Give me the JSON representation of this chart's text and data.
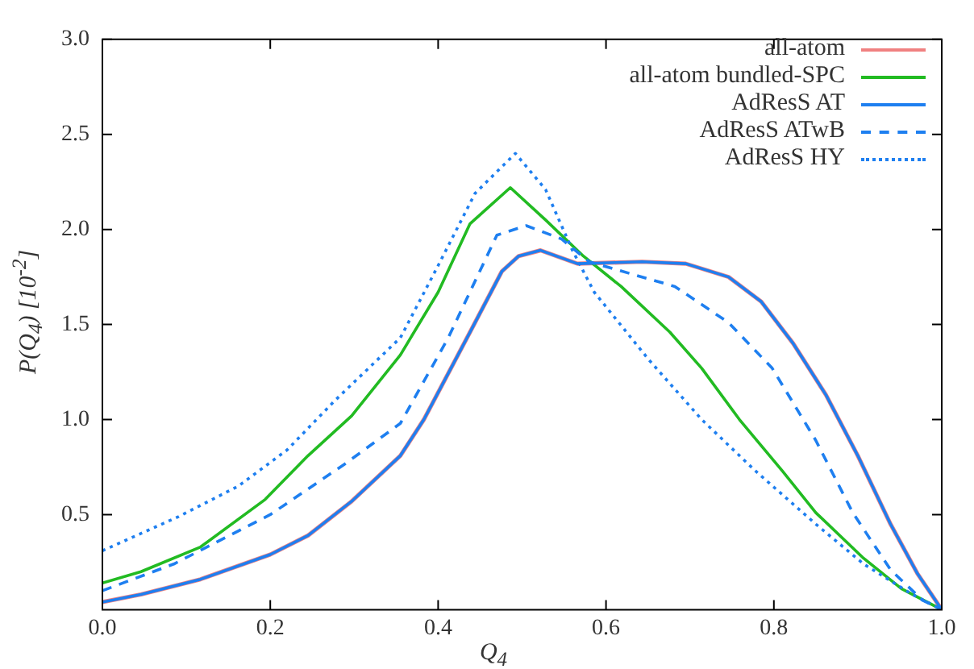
{
  "chart_data": {
    "type": "line",
    "xlabel": "Q$_{4}$",
    "ylabel": "P(Q$_{4}$) [10$^{-2}$]",
    "xlim": [
      0,
      1
    ],
    "ylim": [
      0,
      3
    ],
    "xticks": [
      {
        "value": 0,
        "label": "0.0"
      },
      {
        "value": 0.2,
        "label": "0.2"
      },
      {
        "value": 0.4,
        "label": "0.4"
      },
      {
        "value": 0.6,
        "label": "0.6"
      },
      {
        "value": 0.8,
        "label": "0.8"
      },
      {
        "value": 1,
        "label": "1.0"
      }
    ],
    "yticks": [
      {
        "value": 0.5,
        "label": "0.5"
      },
      {
        "value": 1,
        "label": "1.0"
      },
      {
        "value": 1.5,
        "label": "1.5"
      },
      {
        "value": 2,
        "label": "2.0"
      },
      {
        "value": 2.5,
        "label": "2.5"
      },
      {
        "value": 3,
        "label": "3.0"
      }
    ],
    "legend": "top right",
    "marker": "none",
    "series": [
      {
        "name": "all-atom",
        "color": "#f08080",
        "line_style": "solid",
        "x": [
          0,
          0.046,
          0.117,
          0.2,
          0.245,
          0.297,
          0.355,
          0.383,
          0.438,
          0.476,
          0.496,
          0.522,
          0.566,
          0.643,
          0.695,
          0.746,
          0.785,
          0.823,
          0.862,
          0.9,
          0.939,
          0.971,
          1
        ],
        "values": [
          0.04,
          0.08,
          0.16,
          0.29,
          0.39,
          0.57,
          0.81,
          1.0,
          1.46,
          1.78,
          1.86,
          1.89,
          1.82,
          1.83,
          1.82,
          1.75,
          1.62,
          1.4,
          1.13,
          0.81,
          0.45,
          0.19,
          0
        ]
      },
      {
        "name": "all-atom bundled-SPC",
        "color": "#22bb22",
        "line_style": "solid",
        "x": [
          0,
          0.046,
          0.117,
          0.194,
          0.245,
          0.297,
          0.355,
          0.4,
          0.438,
          0.486,
          0.528,
          0.573,
          0.618,
          0.676,
          0.714,
          0.759,
          0.81,
          0.85,
          0.907,
          0.952,
          1
        ],
        "values": [
          0.14,
          0.2,
          0.33,
          0.58,
          0.81,
          1.02,
          1.34,
          1.67,
          2.03,
          2.22,
          2.05,
          1.86,
          1.7,
          1.46,
          1.27,
          1.0,
          0.73,
          0.51,
          0.27,
          0.11,
          0
        ]
      },
      {
        "name": "AdResS AT",
        "color": "#1e7ff0",
        "line_style": "solid",
        "x": [
          0,
          0.046,
          0.117,
          0.2,
          0.245,
          0.297,
          0.355,
          0.383,
          0.438,
          0.476,
          0.496,
          0.522,
          0.566,
          0.643,
          0.695,
          0.746,
          0.785,
          0.823,
          0.862,
          0.9,
          0.939,
          0.971,
          1
        ],
        "values": [
          0.04,
          0.08,
          0.16,
          0.29,
          0.39,
          0.57,
          0.81,
          1.0,
          1.46,
          1.78,
          1.86,
          1.89,
          1.82,
          1.83,
          1.82,
          1.75,
          1.62,
          1.4,
          1.13,
          0.81,
          0.45,
          0.19,
          0
        ]
      },
      {
        "name": "AdResS ATwB",
        "color": "#1e7ff0",
        "line_style": "dashed",
        "x": [
          0,
          0.085,
          0.2,
          0.29,
          0.355,
          0.412,
          0.47,
          0.505,
          0.547,
          0.58,
          0.682,
          0.746,
          0.798,
          0.85,
          0.894,
          0.939,
          0.977,
          1
        ],
        "values": [
          0.1,
          0.24,
          0.5,
          0.77,
          0.98,
          1.43,
          1.97,
          2.02,
          1.95,
          1.83,
          1.7,
          1.51,
          1.27,
          0.89,
          0.51,
          0.21,
          0.05,
          0
        ]
      },
      {
        "name": "AdResS HY",
        "color": "#1e7ff0",
        "line_style": "dotted",
        "x": [
          0,
          0.091,
          0.162,
          0.22,
          0.277,
          0.355,
          0.4,
          0.444,
          0.492,
          0.528,
          0.56,
          0.586,
          0.65,
          0.714,
          0.778,
          0.85,
          0.907,
          0.965,
          1
        ],
        "values": [
          0.31,
          0.49,
          0.65,
          0.84,
          1.1,
          1.43,
          1.81,
          2.19,
          2.4,
          2.21,
          1.89,
          1.67,
          1.32,
          1.0,
          0.73,
          0.45,
          0.24,
          0.08,
          0
        ]
      }
    ]
  }
}
